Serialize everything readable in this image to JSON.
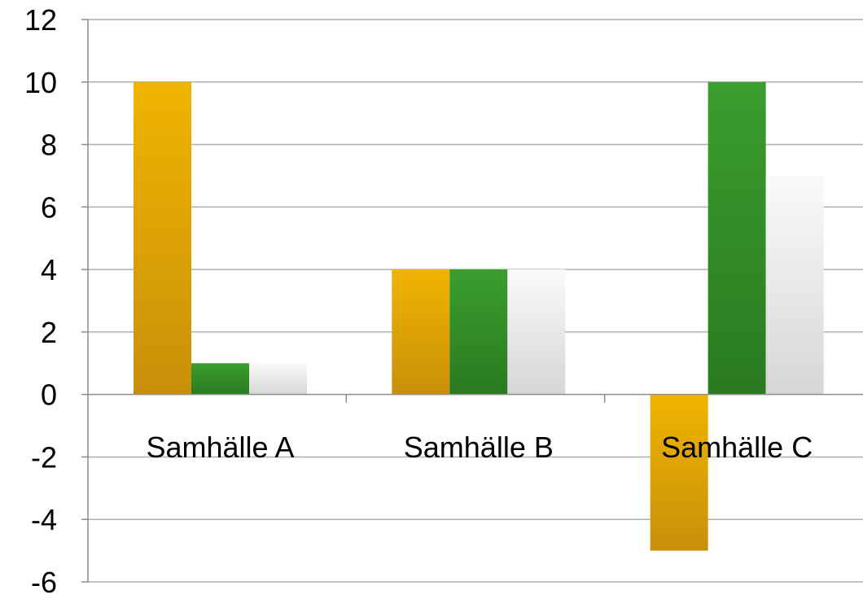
{
  "chart_data": {
    "type": "bar",
    "title": "",
    "xlabel": "",
    "ylabel": "",
    "categories": [
      "Samhälle A",
      "Samhälle B",
      "Samhälle C"
    ],
    "series": [
      {
        "values": [
          10,
          4,
          -5
        ],
        "color": "#e6a800"
      },
      {
        "values": [
          1,
          4,
          10
        ],
        "color": "#2e8b25"
      },
      {
        "values": [
          1,
          4,
          7
        ],
        "color": "#f2f2f2"
      }
    ],
    "ylim": [
      -6,
      12
    ],
    "yticks": [
      "-6",
      "-4",
      "-2",
      "0",
      "2",
      "4",
      "6",
      "8",
      "10",
      "12"
    ],
    "grid": true,
    "legend": "none"
  }
}
